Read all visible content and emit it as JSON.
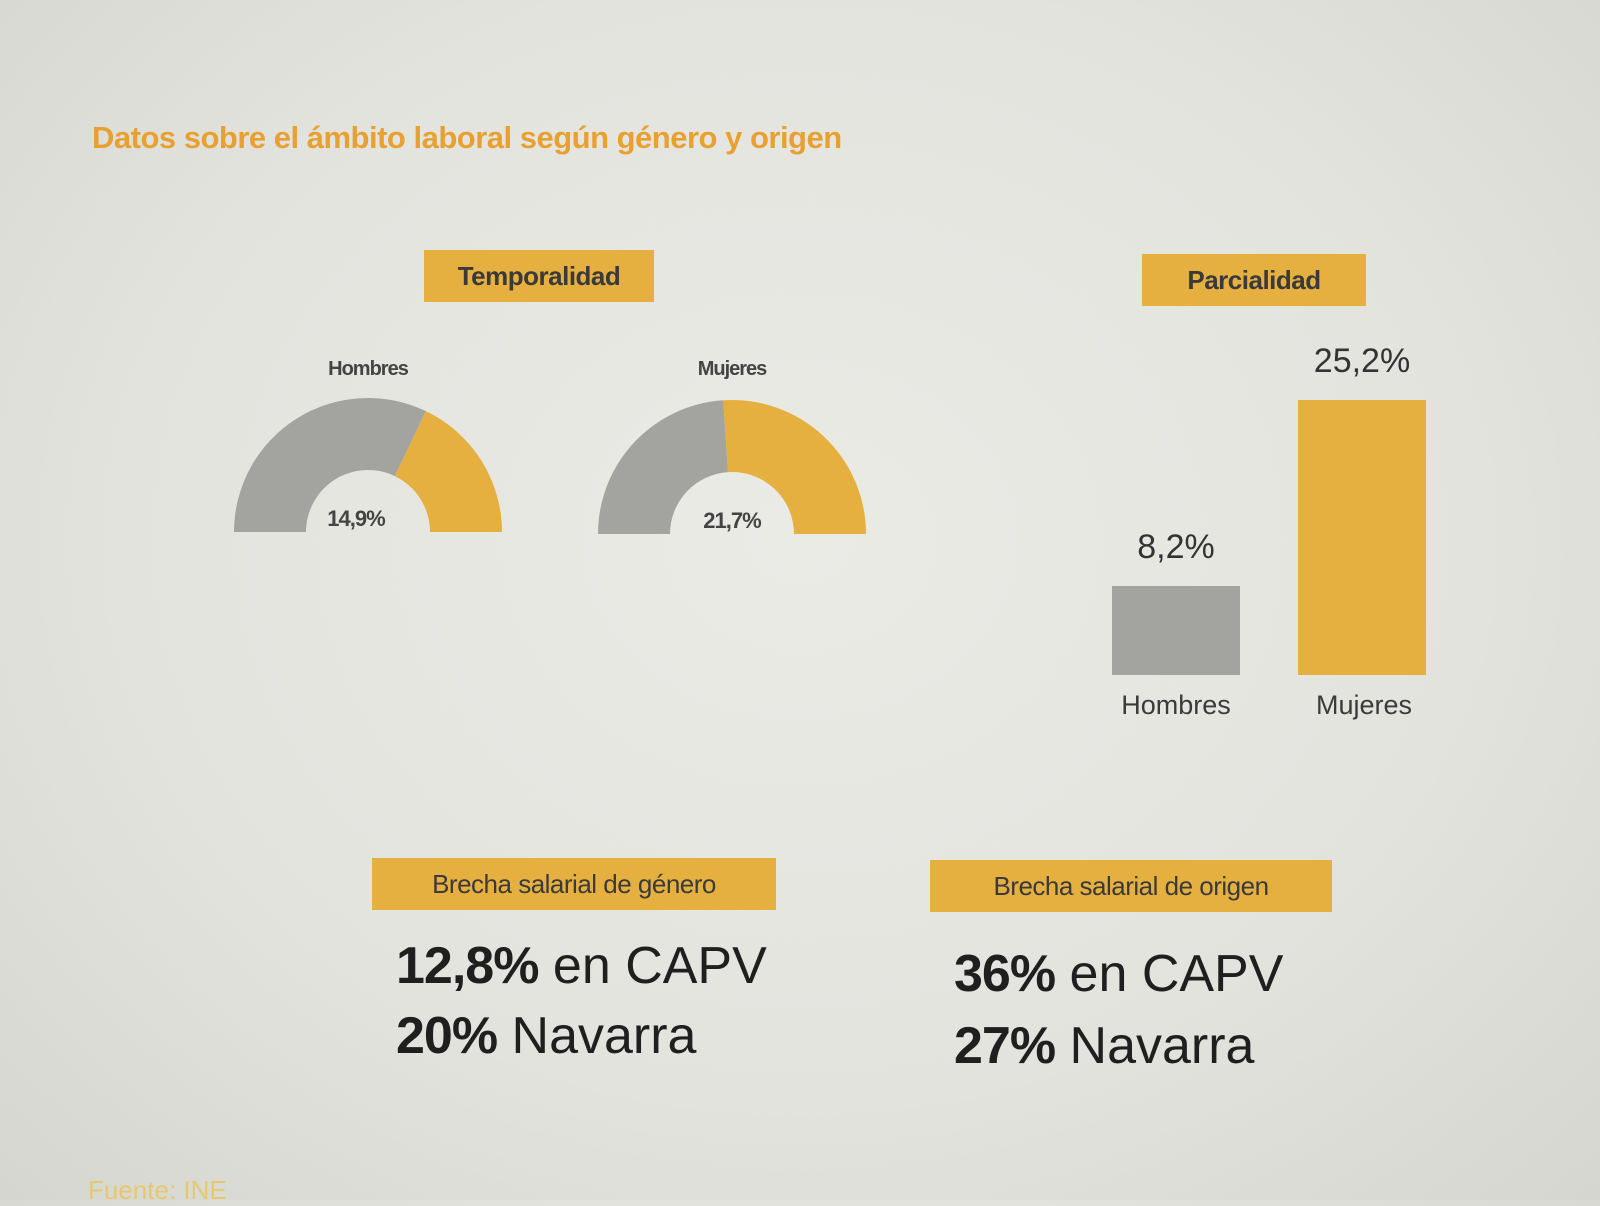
{
  "title": "Datos sobre el ámbito laboral según género y origen",
  "temporalidad": {
    "label": "Temporalidad",
    "gauges": [
      {
        "name": "Hombres",
        "value": 14.9,
        "value_label": "14,9%"
      },
      {
        "name": "Mujeres",
        "value": 21.7,
        "value_label": "21,7%"
      }
    ]
  },
  "parcialidad": {
    "label": "Parcialidad",
    "bars": [
      {
        "name": "Hombres",
        "value": 8.2,
        "value_label": "8,2%"
      },
      {
        "name": "Mujeres",
        "value": 25.2,
        "value_label": "25,2%"
      }
    ]
  },
  "brecha_genero": {
    "label": "Brecha salarial de género",
    "line1": {
      "value": "12,8%",
      "text": " en CAPV"
    },
    "line2": {
      "value": "20%",
      "text": " Navarra"
    }
  },
  "brecha_origen": {
    "label": "Brecha salarial de origen",
    "line1": {
      "value": "36%",
      "text": " en CAPV"
    },
    "line2": {
      "value": "27%",
      "text": " Navarra"
    }
  },
  "source": "Fuente: INE",
  "colors": {
    "accent": "#e6b040",
    "gray": "#a3a3a0",
    "title": "#e8a030"
  },
  "chart_data": [
    {
      "type": "pie",
      "title": "Temporalidad",
      "categories": [
        "Hombres",
        "Mujeres"
      ],
      "values": [
        14.9,
        21.7
      ],
      "unit": "%"
    },
    {
      "type": "bar",
      "title": "Parcialidad",
      "categories": [
        "Hombres",
        "Mujeres"
      ],
      "values": [
        8.2,
        25.2
      ],
      "unit": "%"
    }
  ]
}
